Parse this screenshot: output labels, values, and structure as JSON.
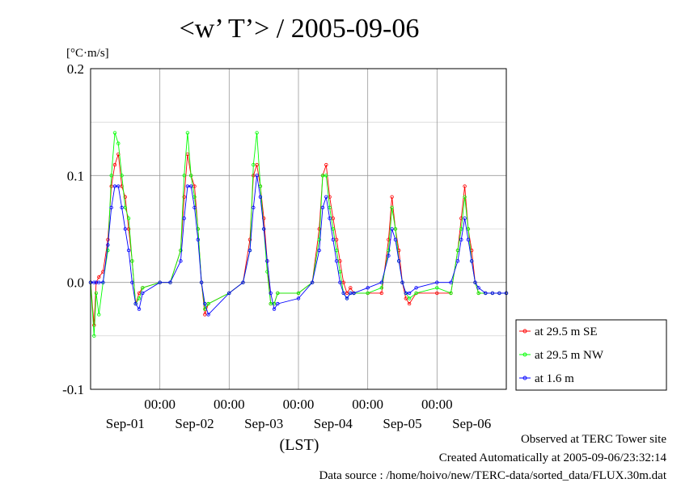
{
  "chart_data": {
    "type": "line",
    "title": "<w’ T’> / 2005-09-06",
    "ylabel": "[°C·m/s]",
    "xlabel": "(LST)",
    "ylim": [
      -0.1,
      0.2
    ],
    "yticks": [
      "0.2",
      "0.1",
      "0.0",
      "-0.1"
    ],
    "yticks_values": [
      0.2,
      0.1,
      0.0,
      -0.1
    ],
    "x_unit": "day",
    "xlim": [
      0.0,
      6.0
    ],
    "xticks_time": [
      "00:00",
      "00:00",
      "00:00",
      "00:00",
      "00:00"
    ],
    "xticks_time_values": [
      1,
      2,
      3,
      4,
      5
    ],
    "xticks_date": [
      "Sep-01",
      "Sep-02",
      "Sep-03",
      "Sep-04",
      "Sep-05",
      "Sep-06"
    ],
    "xticks_date_values": [
      0.5,
      1.5,
      2.5,
      3.5,
      4.5,
      5.5
    ],
    "grid": true,
    "legend_position": "bottom-right",
    "series": [
      {
        "name": "at 29.5 m SE",
        "color": "#ff0000",
        "x": [
          0.0,
          0.05,
          0.08,
          0.12,
          0.18,
          0.25,
          0.3,
          0.35,
          0.4,
          0.45,
          0.5,
          0.55,
          0.6,
          0.65,
          0.7,
          0.75,
          1.0,
          1.15,
          1.3,
          1.35,
          1.4,
          1.45,
          1.5,
          1.55,
          1.6,
          1.65,
          1.7,
          2.0,
          2.2,
          2.3,
          2.35,
          2.4,
          2.45,
          2.5,
          2.55,
          2.6,
          2.65,
          2.7,
          3.0,
          3.2,
          3.3,
          3.35,
          3.4,
          3.45,
          3.5,
          3.55,
          3.6,
          3.65,
          3.7,
          3.75,
          3.8,
          4.0,
          4.2,
          4.3,
          4.35,
          4.4,
          4.45,
          4.5,
          4.55,
          4.6,
          4.7,
          5.0,
          5.2,
          5.3,
          5.35,
          5.4,
          5.45,
          5.5,
          5.55,
          5.6,
          5.7,
          5.8,
          5.9,
          6.0
        ],
        "y": [
          0.0,
          -0.04,
          0.0,
          0.005,
          0.01,
          0.04,
          0.09,
          0.11,
          0.12,
          0.09,
          0.08,
          0.05,
          0.02,
          -0.02,
          -0.01,
          -0.005,
          0.0,
          0.0,
          0.03,
          0.08,
          0.12,
          0.1,
          0.09,
          0.05,
          0.0,
          -0.03,
          -0.02,
          -0.01,
          0.0,
          0.04,
          0.1,
          0.11,
          0.09,
          0.06,
          0.02,
          -0.02,
          -0.02,
          -0.01,
          -0.01,
          0.0,
          0.05,
          0.1,
          0.11,
          0.08,
          0.06,
          0.04,
          0.02,
          0.0,
          -0.01,
          -0.005,
          -0.01,
          -0.01,
          -0.01,
          0.04,
          0.08,
          0.05,
          0.03,
          0.0,
          -0.015,
          -0.02,
          -0.01,
          -0.01,
          -0.01,
          0.03,
          0.06,
          0.09,
          0.05,
          0.03,
          0.0,
          -0.01,
          -0.01,
          -0.01,
          -0.01,
          -0.01
        ]
      },
      {
        "name": "at 29.5 m NW",
        "color": "#00ff00",
        "x": [
          0.0,
          0.05,
          0.08,
          0.12,
          0.18,
          0.25,
          0.3,
          0.35,
          0.4,
          0.45,
          0.5,
          0.55,
          0.6,
          0.65,
          0.7,
          0.75,
          1.0,
          1.15,
          1.3,
          1.35,
          1.4,
          1.45,
          1.5,
          1.55,
          1.6,
          1.65,
          1.7,
          2.0,
          2.2,
          2.3,
          2.35,
          2.4,
          2.45,
          2.5,
          2.55,
          2.6,
          2.65,
          2.7,
          3.0,
          3.2,
          3.3,
          3.35,
          3.4,
          3.45,
          3.5,
          3.55,
          3.6,
          3.65,
          3.7,
          3.75,
          3.8,
          4.0,
          4.2,
          4.3,
          4.35,
          4.4,
          4.45,
          4.5,
          4.55,
          4.6,
          4.7,
          5.0,
          5.2,
          5.3,
          5.35,
          5.4,
          5.45,
          5.5,
          5.55,
          5.6,
          5.7,
          5.8,
          5.9,
          6.0
        ],
        "y": [
          0.0,
          -0.05,
          -0.01,
          -0.03,
          0.0,
          0.03,
          0.1,
          0.14,
          0.13,
          0.1,
          0.07,
          0.06,
          0.02,
          -0.02,
          -0.015,
          -0.005,
          0.0,
          0.0,
          0.03,
          0.1,
          0.14,
          0.1,
          0.08,
          0.05,
          0.0,
          -0.025,
          -0.02,
          -0.01,
          0.0,
          0.03,
          0.11,
          0.14,
          0.09,
          0.05,
          0.01,
          -0.02,
          -0.02,
          -0.01,
          -0.01,
          0.0,
          0.04,
          0.1,
          0.1,
          0.07,
          0.05,
          0.03,
          0.01,
          -0.01,
          -0.015,
          -0.01,
          -0.01,
          -0.01,
          -0.005,
          0.03,
          0.07,
          0.05,
          0.02,
          0.0,
          -0.01,
          -0.015,
          -0.01,
          -0.005,
          -0.01,
          0.03,
          0.05,
          0.08,
          0.05,
          0.02,
          0.0,
          -0.01,
          -0.01,
          -0.01,
          -0.01,
          -0.01
        ]
      },
      {
        "name": "at 1.6 m",
        "color": "#0000ff",
        "x": [
          0.0,
          0.05,
          0.08,
          0.12,
          0.18,
          0.25,
          0.3,
          0.35,
          0.4,
          0.45,
          0.5,
          0.55,
          0.6,
          0.65,
          0.7,
          0.75,
          1.0,
          1.15,
          1.3,
          1.35,
          1.4,
          1.45,
          1.5,
          1.55,
          1.6,
          1.65,
          1.7,
          2.0,
          2.2,
          2.3,
          2.35,
          2.4,
          2.45,
          2.5,
          2.55,
          2.6,
          2.65,
          2.7,
          3.0,
          3.2,
          3.3,
          3.35,
          3.4,
          3.45,
          3.5,
          3.55,
          3.6,
          3.65,
          3.7,
          3.75,
          3.8,
          4.0,
          4.2,
          4.3,
          4.35,
          4.4,
          4.45,
          4.5,
          4.55,
          4.6,
          4.7,
          5.0,
          5.2,
          5.3,
          5.35,
          5.4,
          5.45,
          5.5,
          5.55,
          5.6,
          5.7,
          5.8,
          5.9,
          6.0
        ],
        "y": [
          0.0,
          0.0,
          0.0,
          0.0,
          0.0,
          0.035,
          0.07,
          0.09,
          0.09,
          0.07,
          0.05,
          0.03,
          0.0,
          -0.02,
          -0.025,
          -0.01,
          0.0,
          0.0,
          0.02,
          0.06,
          0.09,
          0.09,
          0.07,
          0.04,
          0.0,
          -0.02,
          -0.03,
          -0.01,
          0.0,
          0.03,
          0.07,
          0.1,
          0.08,
          0.05,
          0.02,
          -0.01,
          -0.025,
          -0.02,
          -0.015,
          0.0,
          0.03,
          0.07,
          0.08,
          0.06,
          0.04,
          0.02,
          0.0,
          -0.01,
          -0.015,
          -0.01,
          -0.01,
          -0.005,
          0.0,
          0.025,
          0.05,
          0.04,
          0.02,
          0.0,
          -0.01,
          -0.01,
          -0.005,
          0.0,
          0.0,
          0.02,
          0.04,
          0.06,
          0.04,
          0.02,
          0.0,
          -0.005,
          -0.01,
          -0.01,
          -0.01,
          -0.01
        ]
      }
    ]
  },
  "footer": {
    "observed": "Observed at TERC Tower site",
    "created": "Created Automatically at 2005-09-06/23:32:14",
    "source": "Data source : /home/hoivo/new/TERC-data/sorted_data/FLUX.30m.dat"
  }
}
